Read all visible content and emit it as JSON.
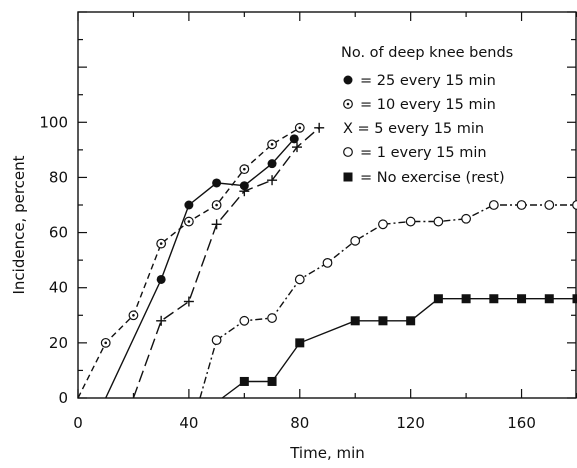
{
  "chart_data": {
    "type": "line",
    "title": "",
    "xlabel": "Time, min",
    "ylabel": "Incidence, percent",
    "xlim": [
      0,
      180
    ],
    "ylim": [
      0,
      140
    ],
    "x_ticks": [
      0,
      40,
      80,
      120,
      160
    ],
    "y_ticks": [
      0,
      20,
      40,
      60,
      80,
      100
    ],
    "grid": false,
    "legend_position": "top-right",
    "legend_title": "No. of deep knee bends",
    "series": [
      {
        "name": "= 25 every 15 min",
        "marker": "filled-circle",
        "line_style": "solid",
        "x": [
          10,
          30,
          40,
          50,
          60,
          70,
          78
        ],
        "y": [
          0,
          43,
          70,
          78,
          77,
          85,
          94
        ]
      },
      {
        "name": "= 10 every 15 min",
        "marker": "dotted-circle",
        "line_style": "dashed",
        "x": [
          0,
          10,
          20,
          30,
          40,
          50,
          60,
          70,
          80
        ],
        "y": [
          0,
          20,
          30,
          56,
          64,
          70,
          83,
          92,
          98
        ]
      },
      {
        "name": "X =  5 every 15 min",
        "marker": "plus",
        "line_style": "long-dashed",
        "x": [
          20,
          30,
          40,
          50,
          60,
          70,
          79,
          87
        ],
        "y": [
          0,
          28,
          35,
          63,
          75,
          79,
          91,
          98
        ]
      },
      {
        "name": "=  1 every 15 min",
        "marker": "open-circle",
        "line_style": "dash-dot",
        "x": [
          44,
          50,
          60,
          70,
          80,
          90,
          100,
          110,
          120,
          130,
          140,
          150,
          160,
          170,
          180
        ],
        "y": [
          0,
          21,
          28,
          29,
          43,
          49,
          57,
          63,
          64,
          64,
          65,
          70,
          70,
          70,
          70
        ]
      },
      {
        "name": "= No exercise (rest)",
        "marker": "filled-square",
        "line_style": "solid",
        "x": [
          52,
          60,
          70,
          80,
          100,
          110,
          120,
          130,
          140,
          150,
          160,
          170,
          180
        ],
        "y": [
          0,
          6,
          6,
          20,
          28,
          28,
          28,
          36,
          36,
          36,
          36,
          36,
          36
        ]
      }
    ]
  }
}
